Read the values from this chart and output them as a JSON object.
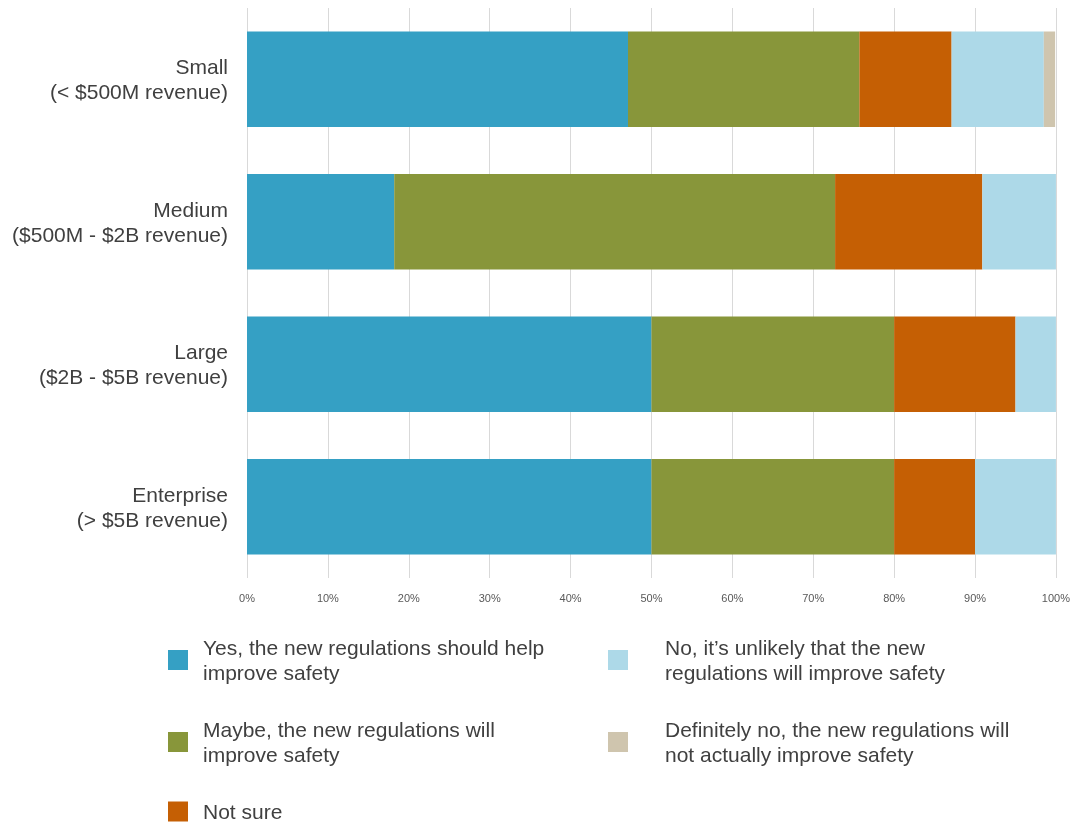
{
  "chart_data": {
    "type": "bar",
    "orientation": "horizontal",
    "stacked": true,
    "categories": [
      "Small\n(< $500M revenue)",
      "Medium\n($500M - $2B revenue)",
      "Large\n($2B - $5B revenue)",
      "Enterprise\n(> $5B revenue)"
    ],
    "series": [
      {
        "name": "Yes, the new regulations should help improve safety",
        "color": "#35a0c4",
        "values": [
          47.1,
          18.2,
          50,
          50
        ]
      },
      {
        "name": "Maybe, the new regulations will improve safety",
        "color": "#88963a",
        "values": [
          28.6,
          54.5,
          30,
          30
        ]
      },
      {
        "name": "Not sure",
        "color": "#c55f04",
        "values": [
          11.4,
          18.2,
          15,
          10
        ]
      },
      {
        "name": "No, it’s unlikely that the new regulations will improve safety",
        "color": "#add9e8",
        "values": [
          11.4,
          9.1,
          5,
          10
        ]
      },
      {
        "name": "Definitely no, the new regulations will not actually improve safety",
        "color": "#cfc5ae",
        "values": [
          1.4,
          0,
          0,
          0
        ]
      }
    ],
    "xlim": [
      0,
      100
    ],
    "xticks": [
      {
        "value": 0,
        "label": "0%"
      },
      {
        "value": 10,
        "label": "10%"
      },
      {
        "value": 20,
        "label": "20%"
      },
      {
        "value": 30,
        "label": "30%"
      },
      {
        "value": 40,
        "label": "40%"
      },
      {
        "value": 50,
        "label": "50%"
      },
      {
        "value": 60,
        "label": "60%"
      },
      {
        "value": 70,
        "label": "70%"
      },
      {
        "value": 80,
        "label": "80%"
      },
      {
        "value": 90,
        "label": "90%"
      },
      {
        "value": 100,
        "label": "100%"
      }
    ],
    "grid": "x",
    "legend": "bottom"
  }
}
